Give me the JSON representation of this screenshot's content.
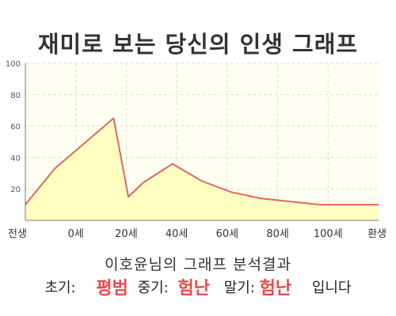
{
  "header": {
    "title": "재미로 보는 당신의 인생 그래프"
  },
  "chart_data": {
    "type": "area",
    "x_labels": [
      "전생",
      "0세",
      "20세",
      "40세",
      "60세",
      "80세",
      "100세",
      "환생"
    ],
    "x": [
      -10,
      0,
      10,
      20,
      25,
      30,
      40,
      50,
      60,
      70,
      80,
      90,
      100,
      110
    ],
    "values": [
      10,
      33,
      49,
      65,
      15,
      24,
      36,
      25,
      18,
      14,
      12,
      10,
      10,
      10
    ],
    "ylim": [
      0,
      100
    ],
    "yticks": [
      20,
      40,
      60,
      80,
      100
    ],
    "grid": true,
    "colors": {
      "line": "#e06666",
      "fill": "#ffffc2",
      "plot_bg": "#fffff2",
      "grid": "#e0e0d0",
      "axis": "#777777"
    }
  },
  "result": {
    "subtitle": "이호윤님의 그래프 분석결과",
    "early_label": "초기:",
    "early_value": "평범",
    "mid_label": "중기:",
    "mid_value": "험난",
    "late_label": "말기:",
    "late_value": "험난",
    "suffix": "입니다"
  }
}
